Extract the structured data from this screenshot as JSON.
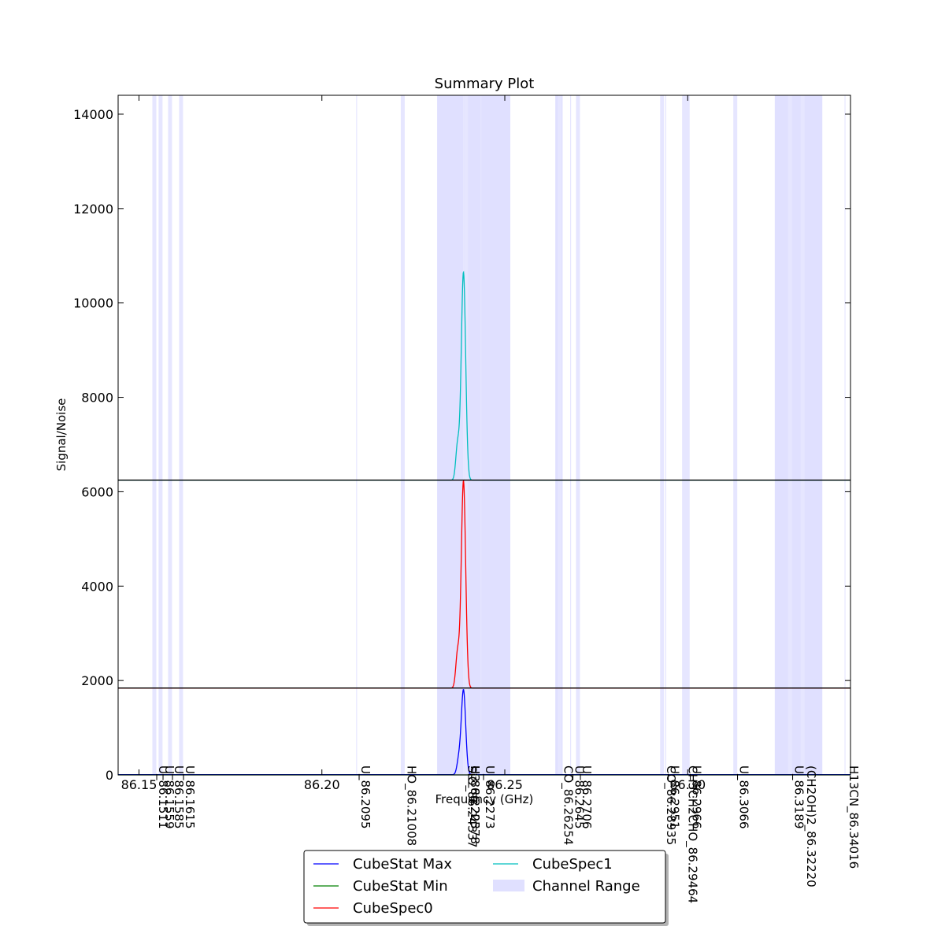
{
  "chart_data": {
    "type": "line",
    "title": "Summary Plot",
    "xlabel": "Frequency (GHz)",
    "ylabel": "Signal/Noise",
    "xlim": [
      86.1443,
      86.3445
    ],
    "ylim": [
      0,
      14400
    ],
    "x_ticks": [
      86.15,
      86.2,
      86.25,
      86.3
    ],
    "x_tick_labels": [
      "86.15",
      "86.20",
      "86.25",
      "86.30"
    ],
    "y_ticks": [
      0,
      2000,
      4000,
      6000,
      8000,
      10000,
      12000,
      14000
    ],
    "y_tick_labels": [
      "0",
      "2000",
      "4000",
      "6000",
      "8000",
      "10000",
      "12000",
      "14000"
    ],
    "grid": false,
    "legend_position": "bottom-center",
    "series": [
      {
        "name": "CubeStat Max",
        "color": "#0000ff",
        "baseline": 5,
        "peaks": [
          {
            "x": 86.2387,
            "y": 1800,
            "width": 0.0006
          },
          {
            "x": 86.2374,
            "y": 300,
            "width": 0.0005
          }
        ]
      },
      {
        "name": "CubeStat Min",
        "color": "#008000",
        "baseline": 0,
        "peaks": []
      },
      {
        "name": "CubeSpec0",
        "color": "#ff0000",
        "baseline": 1840,
        "peaks": [
          {
            "x": 86.2387,
            "y": 6230,
            "width": 0.0006
          },
          {
            "x": 86.2371,
            "y": 2580,
            "width": 0.0005
          }
        ]
      },
      {
        "name": "CubeSpec1",
        "color": "#00bfbf",
        "baseline": 6245,
        "peaks": [
          {
            "x": 86.2387,
            "y": 10650,
            "width": 0.0006
          },
          {
            "x": 86.2371,
            "y": 6990,
            "width": 0.0005
          }
        ]
      }
    ],
    "black_lines": [
      1840,
      6245
    ],
    "channel_range_label": "Channel Range",
    "channel_range_color": "#e0e0ff",
    "channel_ranges": [
      [
        86.2315,
        86.2515
      ],
      [
        86.2638,
        86.2658
      ],
      [
        86.3238,
        86.3368
      ]
    ],
    "line_markers": [
      {
        "x": 86.1542,
        "label": "U_86.1511",
        "band": true
      },
      {
        "x": 86.1559,
        "label": "U_86.1559",
        "band": true
      },
      {
        "x": 86.1585,
        "label": "U_86.1585",
        "band": true
      },
      {
        "x": 86.1615,
        "label": "U_86.1615",
        "band": true
      },
      {
        "x": 86.2095,
        "label": "U_86.2095",
        "band": false
      },
      {
        "x": 86.2221,
        "label": "HO_86.21008",
        "band": true
      },
      {
        "x": 86.2394,
        "label": "U_86.2205",
        "band": false
      },
      {
        "x": 86.2394,
        "label": "H3_86.22378",
        "band": true
      },
      {
        "x": 86.2435,
        "label": "U_86.2273",
        "band": false
      },
      {
        "x": 86.2387,
        "label": "SiO_86.24337",
        "band": false
      },
      {
        "x": 86.265,
        "label": "CO_86.26254",
        "band": true
      },
      {
        "x": 86.268,
        "label": "U_86.2645",
        "band": false
      },
      {
        "x": 86.27,
        "label": "U_86.2706",
        "band": true
      },
      {
        "x": 86.293,
        "label": "CO_86.28935",
        "band": true
      },
      {
        "x": 86.294,
        "label": "U_86.2951",
        "band": false
      },
      {
        "x": 86.299,
        "label": "CH3CH2CHO_86.29464",
        "band": true
      },
      {
        "x": 86.3,
        "label": "U_86.2966",
        "band": true
      },
      {
        "x": 86.313,
        "label": "U_86.3066",
        "band": true
      },
      {
        "x": 86.328,
        "label": "U_86.3189",
        "band": true
      },
      {
        "x": 86.3314,
        "label": "(CH2OH)2_86.32220",
        "band": true
      },
      {
        "x": 86.343,
        "label": "H13CN_86.34016",
        "band": false
      }
    ]
  }
}
